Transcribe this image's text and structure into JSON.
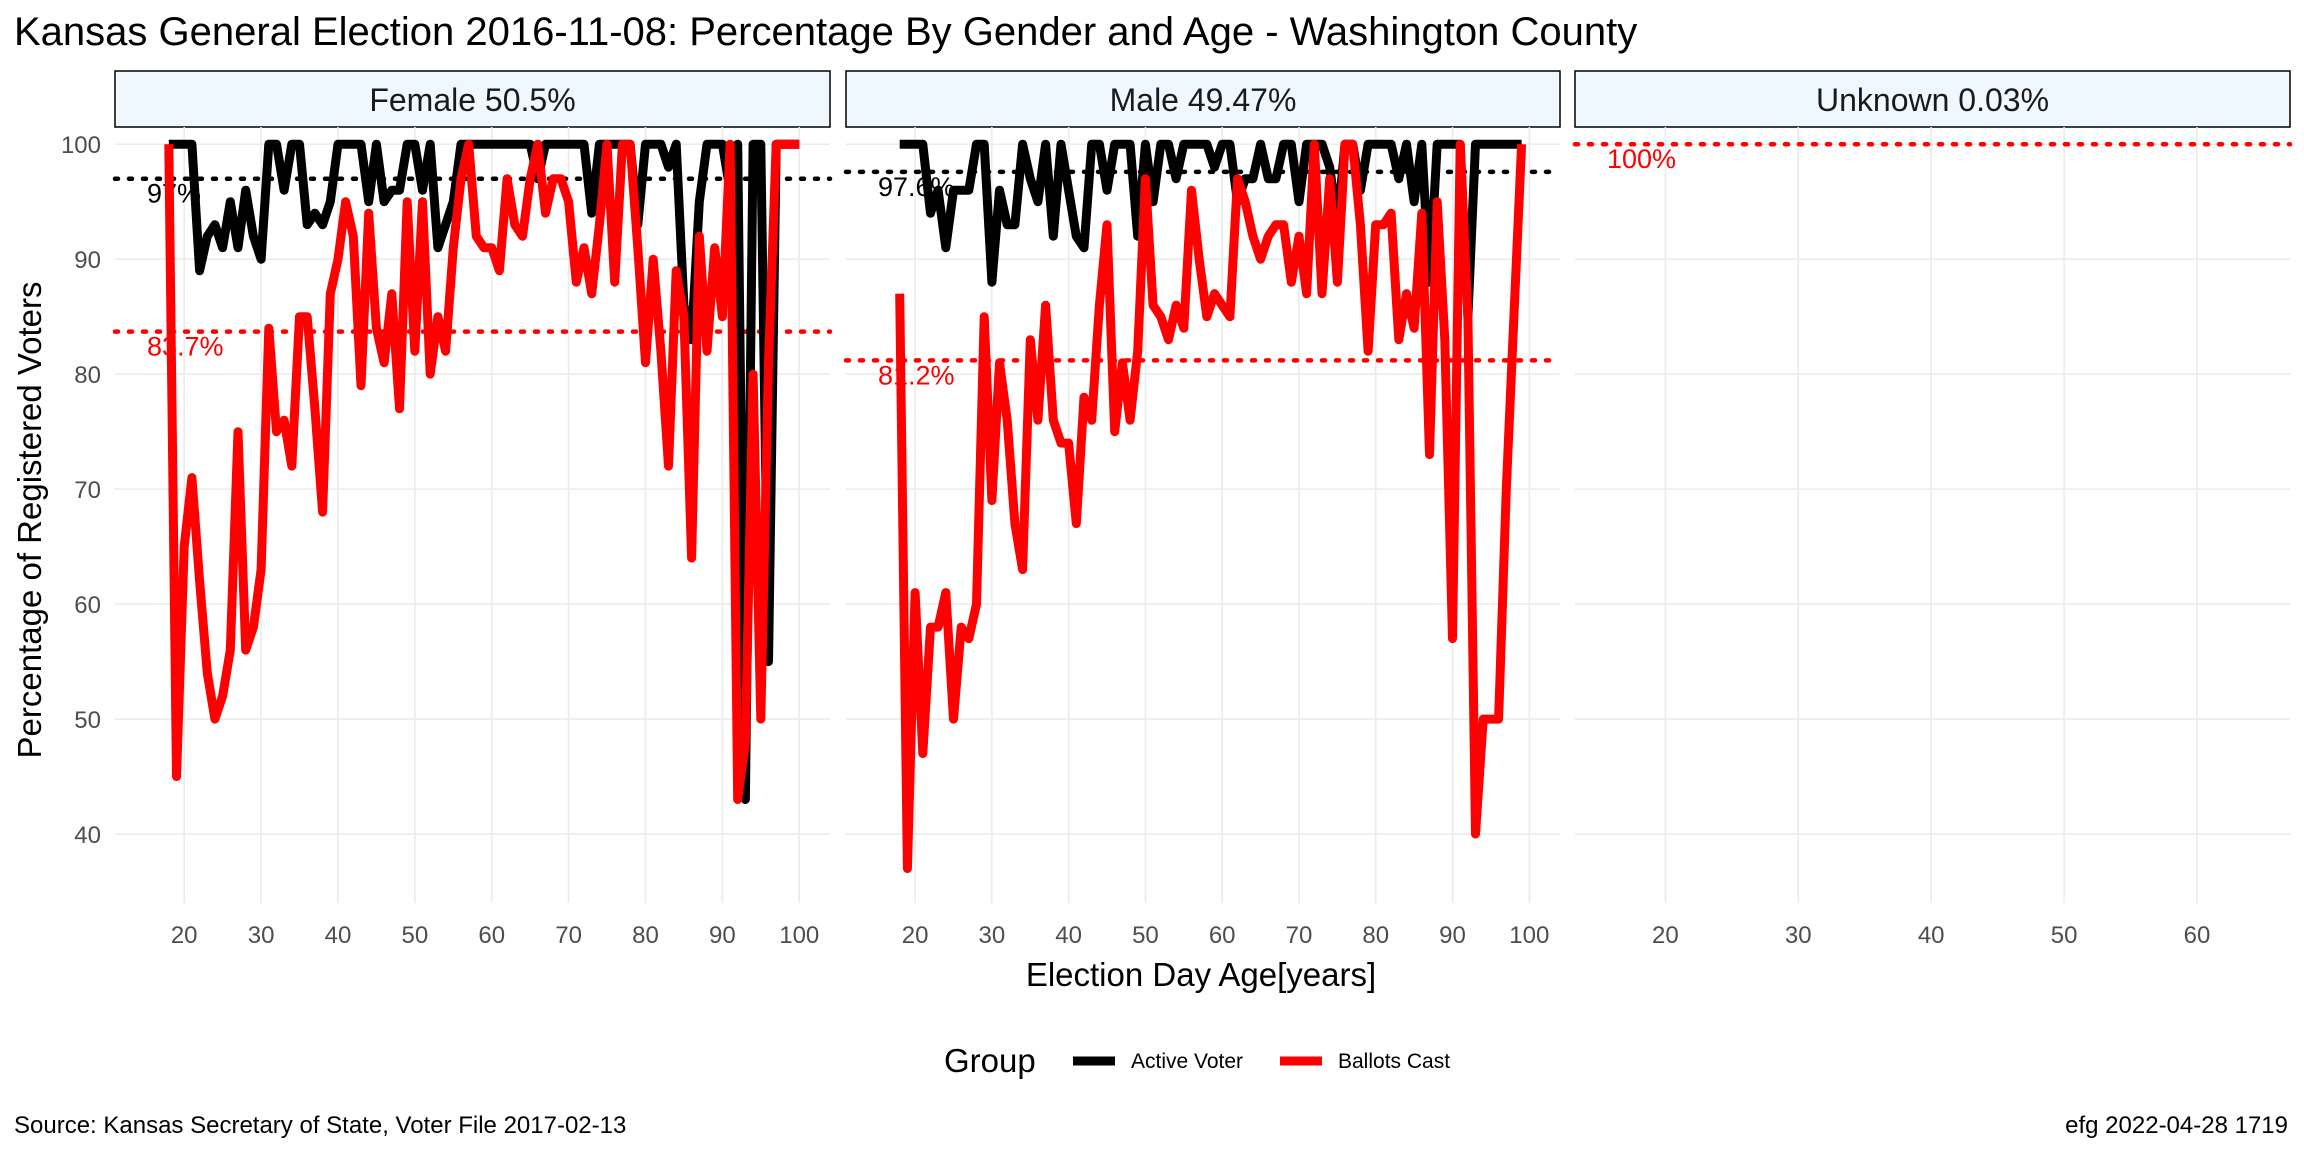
{
  "title": "Kansas General Election 2016-11-08:  Percentage By Gender and Age - Washington County",
  "source_caption": "Source:  Kansas Secretary of State, Voter File  2017-02-13",
  "credit_caption": "efg 2022-04-28 1719",
  "colors": {
    "active": "#000000",
    "ballots": "#ff0000",
    "strip_fill": "#f0f8ff",
    "grid": "#ebebeb"
  },
  "chart_data": {
    "type": "line",
    "xlabel": "Election Day Age[years]",
    "ylabel": "Percentage of Registered Voters",
    "ylim": [
      34,
      101.5
    ],
    "yticks": [
      40,
      50,
      60,
      70,
      80,
      90,
      100
    ],
    "grid": true,
    "legend": {
      "title": "Group",
      "position": "bottom",
      "items": [
        {
          "label": "Active Voter",
          "color": "#000000"
        },
        {
          "label": "Ballots Cast",
          "color": "#ff0000"
        }
      ]
    },
    "panels": [
      {
        "label": "Female 50.5%",
        "xlim": [
          11,
          104
        ],
        "xticks": [
          20,
          30,
          40,
          50,
          60,
          70,
          80,
          90,
          100
        ],
        "series": [
          {
            "name": "Active Voter",
            "x": [
              18,
              19,
              20,
              21,
              22,
              23,
              24,
              25,
              26,
              27,
              28,
              29,
              30,
              31,
              32,
              33,
              34,
              35,
              36,
              37,
              38,
              39,
              40,
              41,
              42,
              43,
              44,
              45,
              46,
              47,
              48,
              49,
              50,
              51,
              52,
              53,
              54,
              55,
              56,
              57,
              58,
              59,
              60,
              61,
              62,
              63,
              64,
              65,
              66,
              67,
              68,
              69,
              70,
              71,
              72,
              73,
              74,
              75,
              76,
              77,
              78,
              79,
              80,
              81,
              82,
              83,
              84,
              85,
              86,
              87,
              88,
              89,
              90,
              91,
              92,
              93,
              94,
              95,
              96,
              97,
              98,
              99,
              100
            ],
            "values": [
              100,
              100,
              100,
              100,
              89,
              92,
              93,
              91,
              95,
              91,
              96,
              92,
              90,
              100,
              100,
              96,
              100,
              100,
              93,
              94,
              93,
              95,
              100,
              100,
              100,
              100,
              95,
              100,
              95,
              96,
              96,
              100,
              100,
              96,
              100,
              91,
              93,
              95,
              100,
              100,
              100,
              100,
              100,
              100,
              100,
              100,
              100,
              100,
              97,
              100,
              100,
              100,
              100,
              100,
              100,
              94,
              100,
              100,
              100,
              100,
              100,
              93,
              100,
              100,
              100,
              98,
              100,
              86,
              83,
              95,
              100,
              100,
              100,
              96,
              100,
              43,
              100,
              100,
              55,
              100,
              100,
              100,
              100
            ]
          },
          {
            "name": "Ballots Cast",
            "x": [
              18,
              19,
              20,
              21,
              22,
              23,
              24,
              25,
              26,
              27,
              28,
              29,
              30,
              31,
              32,
              33,
              34,
              35,
              36,
              37,
              38,
              39,
              40,
              41,
              42,
              43,
              44,
              45,
              46,
              47,
              48,
              49,
              50,
              51,
              52,
              53,
              54,
              55,
              56,
              57,
              58,
              59,
              60,
              61,
              62,
              63,
              64,
              65,
              66,
              67,
              68,
              69,
              70,
              71,
              72,
              73,
              74,
              75,
              76,
              77,
              78,
              79,
              80,
              81,
              82,
              83,
              84,
              85,
              86,
              87,
              88,
              89,
              90,
              91,
              92,
              93,
              94,
              95,
              96,
              97,
              98,
              99,
              100
            ],
            "values": [
              100,
              45,
              65,
              71,
              62,
              54,
              50,
              52,
              56,
              75,
              56,
              58,
              63,
              84,
              75,
              76,
              72,
              85,
              85,
              77,
              68,
              87,
              90,
              95,
              92,
              79,
              94,
              84,
              81,
              87,
              77,
              95,
              82,
              95,
              80,
              85,
              82,
              91,
              97,
              100,
              92,
              91,
              91,
              89,
              97,
              93,
              92,
              97,
              100,
              94,
              97,
              97,
              95,
              88,
              91,
              87,
              93,
              100,
              88,
              100,
              100,
              91,
              81,
              90,
              82,
              72,
              89,
              85,
              64,
              92,
              82,
              91,
              85,
              100,
              43,
              48,
              80,
              50,
              81,
              100,
              100,
              100,
              100
            ]
          }
        ],
        "reference_lines": [
          {
            "group": "Active Voter",
            "value": 97,
            "label": "97%"
          },
          {
            "group": "Ballots Cast",
            "value": 83.7,
            "label": "83.7%"
          }
        ]
      },
      {
        "label": "Male 49.47%",
        "xlim": [
          11,
          104
        ],
        "xticks": [
          20,
          30,
          40,
          50,
          60,
          70,
          80,
          90,
          100
        ],
        "series": [
          {
            "name": "Active Voter",
            "x": [
              18,
              19,
              20,
              21,
              22,
              23,
              24,
              25,
              26,
              27,
              28,
              29,
              30,
              31,
              32,
              33,
              34,
              35,
              36,
              37,
              38,
              39,
              40,
              41,
              42,
              43,
              44,
              45,
              46,
              47,
              48,
              49,
              50,
              51,
              52,
              53,
              54,
              55,
              56,
              57,
              58,
              59,
              60,
              61,
              62,
              63,
              64,
              65,
              66,
              67,
              68,
              69,
              70,
              71,
              72,
              73,
              74,
              75,
              76,
              77,
              78,
              79,
              80,
              81,
              82,
              83,
              84,
              85,
              86,
              87,
              88,
              89,
              90,
              91,
              92,
              93,
              94,
              95,
              96,
              97,
              98,
              99
            ],
            "values": [
              100,
              100,
              100,
              100,
              94,
              96,
              91,
              96,
              96,
              96,
              100,
              100,
              88,
              96,
              93,
              93,
              100,
              97,
              95,
              100,
              92,
              100,
              96,
              92,
              91,
              100,
              100,
              96,
              100,
              100,
              100,
              92,
              100,
              95,
              100,
              100,
              97,
              100,
              100,
              100,
              100,
              98,
              100,
              100,
              95,
              97,
              97,
              100,
              97,
              97,
              100,
              100,
              95,
              100,
              100,
              100,
              98,
              93,
              100,
              100,
              96,
              100,
              100,
              100,
              100,
              97,
              100,
              95,
              100,
              88,
              100,
              100,
              100,
              100,
              85,
              100,
              100,
              100,
              100,
              100,
              100,
              100
            ]
          },
          {
            "name": "Ballots Cast",
            "x": [
              18,
              19,
              20,
              21,
              22,
              23,
              24,
              25,
              26,
              27,
              28,
              29,
              30,
              31,
              32,
              33,
              34,
              35,
              36,
              37,
              38,
              39,
              40,
              41,
              42,
              43,
              44,
              45,
              46,
              47,
              48,
              49,
              50,
              51,
              52,
              53,
              54,
              55,
              56,
              57,
              58,
              59,
              60,
              61,
              62,
              63,
              64,
              65,
              66,
              67,
              68,
              69,
              70,
              71,
              72,
              73,
              74,
              75,
              76,
              77,
              78,
              79,
              80,
              81,
              82,
              83,
              84,
              85,
              86,
              87,
              88,
              89,
              90,
              91,
              92,
              93,
              94,
              95,
              96,
              97,
              98,
              99
            ],
            "values": [
              87,
              37,
              61,
              47,
              58,
              58,
              61,
              50,
              58,
              57,
              60,
              85,
              69,
              81,
              76,
              67,
              63,
              83,
              76,
              86,
              76,
              74,
              74,
              67,
              78,
              76,
              86,
              93,
              75,
              81,
              76,
              82,
              97,
              86,
              85,
              83,
              86,
              84,
              96,
              90,
              85,
              87,
              86,
              85,
              97,
              95,
              92,
              90,
              92,
              93,
              93,
              88,
              92,
              87,
              100,
              87,
              97,
              88,
              100,
              100,
              93,
              82,
              93,
              93,
              94,
              83,
              87,
              84,
              94,
              73,
              95,
              83,
              57,
              100,
              85,
              40,
              50,
              50,
              50,
              70,
              85,
              100
            ]
          }
        ],
        "reference_lines": [
          {
            "group": "Active Voter",
            "value": 97.6,
            "label": "97.6%"
          },
          {
            "group": "Ballots Cast",
            "value": 81.2,
            "label": "81.2%"
          }
        ]
      },
      {
        "label": "Unknown 0.03%",
        "xlim": [
          13.2,
          67
        ],
        "xticks": [
          20,
          30,
          40,
          50,
          60
        ],
        "series": [],
        "reference_lines": [
          {
            "group": "Ballots Cast",
            "value": 100,
            "label": "100%"
          }
        ]
      }
    ]
  }
}
